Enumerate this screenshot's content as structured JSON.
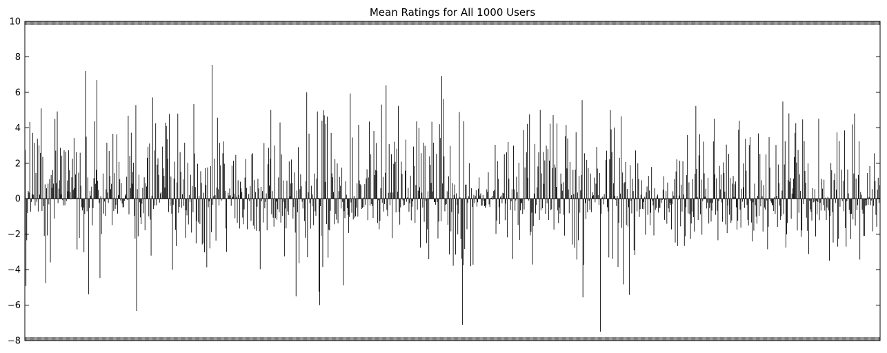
{
  "chart_data": {
    "type": "bar",
    "title": "Mean Ratings for All 1000 Users",
    "xlabel": "",
    "ylabel": "",
    "ylim": [
      -8,
      10
    ],
    "yticks": [
      -8,
      -6,
      -4,
      -2,
      0,
      2,
      4,
      6,
      8,
      10
    ],
    "x_tick_labels_shown": false,
    "grid": false,
    "legend": "none",
    "bar_color": "#000000",
    "categories_count": 1000,
    "values": [
      2.75,
      -4.92,
      -2.34,
      -0.8,
      0.44,
      0.35,
      4.33,
      -0.74,
      -0.18,
      0.26,
      3.71,
      0.22,
      3.15,
      -0.39,
      1.45,
      -0.18,
      3.38,
      -0.72,
      3.01,
      0.23,
      2.58,
      5.09,
      -0.69,
      2.36,
      -0.42,
      -2.1,
      0.81,
      -4.76,
      0.59,
      -2.07,
      0.85,
      -0.32,
      1.1,
      -3.59,
      1.33,
      0.62,
      1.61,
      0.85,
      -1.12,
      4.5,
      2.71,
      0.88,
      4.92,
      -0.25,
      0.57,
      1.04,
      2.87,
      0.25,
      2.43,
      -0.08,
      -0.38,
      2.73,
      -0.37,
      2.65,
      -0.13,
      1.03,
      0.42,
      2.73,
      1.6,
      0.38,
      -0.04,
      1.21,
      2.25,
      0.51,
      3.42,
      0.6,
      1.37,
      2.63,
      -2.86,
      0.06,
      1.47,
      -2.21,
      2.59,
      0.73,
      -0.48,
      -0.66,
      -0.5,
      -3.02,
      -0.86,
      7.2,
      3.5,
      -0.71,
      1.2,
      -5.39,
      -0.52,
      0.43,
      0.17,
      0.68,
      -1.5,
      -0.53,
      1.16,
      4.36,
      0.84,
      1.63,
      6.7,
      1.02,
      0.49,
      -0.24,
      -4.47,
      0.14,
      -2.0,
      -0.01,
      1.42,
      -0.84,
      -0.16,
      -0.97,
      0.53,
      3.16,
      0.35,
      -0.24,
      2.69,
      1.28,
      0.54,
      0.84,
      -1.49,
      3.66,
      -0.7,
      1.44,
      -0.57,
      -0.35,
      3.63,
      -0.84,
      0.2,
      2.08,
      1.1,
      -0.1,
      0.89,
      -0.27,
      -0.48,
      -0.48,
      -0.12,
      0.18,
      0.26,
      1.24,
      -0.07,
      4.68,
      -0.88,
      2.42,
      0.59,
      3.72,
      0.85,
      1.52,
      2.03,
      -0.97,
      -2.25,
      5.28,
      -6.33,
      0.54,
      -2.12,
      1.35,
      -0.2,
      -1.05,
      -1.43,
      -0.28,
      0.61,
      -0.82,
      1.21,
      -1.78,
      0.88,
      0.69,
      2.31,
      2.93,
      -0.99,
      3.11,
      -1.18,
      -3.21,
      0.17,
      5.71,
      -0.58,
      2.72,
      -0.39,
      4.25,
      -0.37,
      1.92,
      2.28,
      1.34,
      -0.22,
      0.3,
      0.39,
      0.03,
      2.94,
      1.71,
      1.29,
      0.63,
      4.29,
      4.1,
      3.35,
      2.25,
      -0.75,
      4.78,
      -0.4,
      1.25,
      -0.84,
      -4.0,
      -0.34,
      1.14,
      2.09,
      -1.76,
      -2.67,
      0.92,
      4.8,
      -0.8,
      -0.46,
      2.63,
      1.52,
      -0.51,
      0.26,
      1.09,
      -0.41,
      3.16,
      -2.2,
      -0.66,
      -0.94,
      2.02,
      -1.45,
      0.21,
      -0.2,
      1.35,
      -1.91,
      0.72,
      -0.76,
      5.34,
      2.55,
      0.66,
      -2.52,
      -1.25,
      1.97,
      -1.33,
      0.17,
      -1.42,
      1.55,
      0.89,
      -2.58,
      -2.52,
      0.34,
      -3.02,
      1.73,
      0.78,
      -3.87,
      1.76,
      -0.48,
      -0.15,
      -2.8,
      1.84,
      -1.88,
      7.55,
      -0.35,
      0.14,
      2.25,
      0.2,
      -2.36,
      0.63,
      4.57,
      0.54,
      -0.38,
      3.15,
      1.88,
      -0.11,
      -0.04,
      2.56,
      3.23,
      1.97,
      0.44,
      -1.68,
      -2.99,
      0.01,
      0.34,
      0.18,
      0.58,
      0.19,
      -0.4,
      1.87,
      0.1,
      2.14,
      0.29,
      -1.1,
      2.47,
      0.11,
      -1.36,
      1.04,
      0.21,
      -1.68,
      0.96,
      0.58,
      0.38,
      -1.06,
      -1.44,
      -0.6,
      1.19,
      2.24,
      0.61,
      -1.72,
      -0.05,
      0.27,
      -0.13,
      0.71,
      -1.25,
      2.5,
      2.57,
      -1.52,
      1.05,
      -1.71,
      0.38,
      -1.81,
      -0.45,
      1.12,
      0.58,
      -1.83,
      -3.97,
      0.67,
      -0.15,
      0.43,
      -1.34,
      3.14,
      -0.54,
      -0.18,
      0.3,
      -1.78,
      1.94,
      2.87,
      0.74,
      2.26,
      5.01,
      -0.87,
      0.43,
      -1.07,
      -1.57,
      3.0,
      -1.09,
      -0.16,
      -1.18,
      -0.59,
      1.2,
      -0.76,
      4.3,
      -1.35,
      2.5,
      -0.96,
      1.03,
      -0.18,
      -3.25,
      -0.55,
      -1.67,
      1.02,
      -0.71,
      -0.92,
      2.1,
      0.14,
      0.86,
      2.21,
      0.89,
      -1.12,
      -0.47,
      1.48,
      -1.91,
      -5.5,
      0.46,
      -0.77,
      2.91,
      -3.64,
      0.54,
      1.38,
      0.7,
      -0.17,
      -0.55,
      -0.05,
      -1.26,
      -2.2,
      0.98,
      6.0,
      -3.3,
      0.36,
      3.67,
      -0.25,
      -1.69,
      0.73,
      -0.43,
      0.24,
      -1.49,
      1.42,
      -0.71,
      -0.96,
      1.14,
      4.92,
      0.05,
      -5.24,
      -6.0,
      -0.42,
      -2.1,
      4.4,
      -3.85,
      4.99,
      4.7,
      0.95,
      4.21,
      -1.43,
      4.63,
      -3.32,
      -1.75,
      -1.79,
      -0.68,
      3.71,
      1.43,
      1.21,
      0.38,
      -1.44,
      2.23,
      -0.86,
      -1.18,
      1.99,
      -1.39,
      0.43,
      1.23,
      0.73,
      -0.55,
      1.75,
      -0.18,
      -4.88,
      -0.7,
      -1.09,
      0.98,
      0.22,
      -0.53,
      -0.93,
      -1.93,
      -1.03,
      5.93,
      -0.21,
      -0.79,
      3.45,
      -1.17,
      0.16,
      -1.07,
      -0.99,
      -0.51,
      0.87,
      -1.01,
      4.17,
      1.03,
      0.82,
      0.76,
      -0.58,
      -0.52,
      0.07,
      -0.47,
      0.82,
      -0.34,
      1.15,
      1.66,
      -1.21,
      1.2,
      4.35,
      -0.38,
      2.51,
      -0.3,
      -0.41,
      -1.08,
      3.82,
      1.33,
      1.62,
      3.14,
      1.58,
      -1.37,
      -0.08,
      -1.72,
      -1.25,
      0.59,
      5.31,
      -0.23,
      1.23,
      -0.72,
      -0.3,
      1.46,
      6.4,
      -0.63,
      -0.98,
      0.33,
      3.08,
      -0.36,
      0.35,
      2.51,
      -2.22,
      0.35,
      1.97,
      3.21,
      2.08,
      -0.77,
      2.82,
      0.4,
      5.23,
      -0.75,
      -1.46,
      -0.49,
      2.09,
      1.4,
      -0.09,
      -0.39,
      -0.34,
      1.58,
      3.33,
      -0.17,
      0.07,
      0.61,
      -0.73,
      -0.26,
      1.3,
      -1.22,
      -0.45,
      -0.14,
      2.94,
      1.84,
      -1.37,
      0.78,
      4.36,
      -0.62,
      0.45,
      3.99,
      0.65,
      -2.76,
      2.57,
      0.34,
      -0.5,
      3.16,
      -1.3,
      2.98,
      -0.13,
      -2.5,
      -1.73,
      0.42,
      -3.41,
      2.39,
      1.91,
      0.89,
      4.34,
      0.41,
      3.16,
      -0.19,
      -0.19,
      -0.34,
      2.53,
      -0.18,
      -2.24,
      -1.29,
      4.2,
      3.42,
      -1.27,
      6.92,
      0.86,
      5.62,
      2.39,
      -0.71,
      -0.34,
      -0.3,
      0.42,
      -1.47,
      1.27,
      -3.14,
      2.98,
      -1.84,
      -0.75,
      0.88,
      -3.78,
      0.21,
      0.8,
      -3.15,
      0.3,
      -0.36,
      -2.01,
      -0.84,
      4.89,
      0.07,
      -2.27,
      -3.39,
      -7.11,
      -3.75,
      4.37,
      -2.83,
      0.79,
      0.8,
      -1.72,
      -0.24,
      0.14,
      2.01,
      0.06,
      -3.81,
      0.59,
      -0.46,
      -3.72,
      0.22,
      -0.25,
      0.15,
      0.48,
      -0.44,
      -0.2,
      0.57,
      1.2,
      0.18,
      0.3,
      -0.4,
      -0.38,
      0.21,
      -0.12,
      -0.42,
      -0.52,
      -0.39,
      0.53,
      0.39,
      1.49,
      -0.32,
      -0.47,
      0.04,
      0.06,
      0.17,
      -0.05,
      0.43,
      0.49,
      3.04,
      -1.98,
      -1.23,
      2.12,
      1.12,
      -0.48,
      -1.43,
      0.11,
      0.18,
      -0.26,
      0.33,
      0.31,
      2.51,
      -1.21,
      -0.28,
      2.62,
      -2.18,
      3.2,
      1.13,
      0.04,
      -0.64,
      -0.15,
      0.54,
      -3.4,
      2.99,
      0.53,
      -0.67,
      -0.1,
      1.24,
      0.37,
      -1.48,
      2.03,
      -2.33,
      -0.66,
      -0.26,
      -0.25,
      -0.86,
      3.87,
      -0.61,
      1.76,
      -0.02,
      2.62,
      4.22,
      1.18,
      -0.1,
      4.76,
      -2.07,
      -1.86,
      -0.79,
      -3.71,
      -1.55,
      0.29,
      3.09,
      -0.83,
      -0.35,
      0.64,
      1.82,
      2.62,
      -1.2,
      5.01,
      -0.66,
      1.43,
      -0.54,
      2.64,
      0.84,
      2.16,
      -0.85,
      2.99,
      -0.26,
      2.8,
      -1.2,
      2.15,
      4.23,
      -0.65,
      -0.59,
      1.73,
      4.71,
      -1.74,
      1.93,
      1.76,
      0.67,
      4.24,
      -0.66,
      -1.38,
      -0.5,
      -0.84,
      1.42,
      0.84,
      0.45,
      0.93,
      -0.91,
      -2.08,
      3.53,
      4.16,
      1.71,
      3.4,
      0.52,
      -0.82,
      2.07,
      0.02,
      0.2,
      -2.58,
      1.63,
      0.27,
      -2.77,
      1.64,
      3.75,
      -3.43,
      0.35,
      -2.34,
      1.28,
      -0.79,
      0.47,
      1.34,
      5.56,
      -5.56,
      -3.73,
      2.56,
      -0.25,
      -1.15,
      2.19,
      -0.76,
      1.73,
      -0.12,
      -0.62,
      1.42,
      -0.76,
      0.16,
      0.36,
      0.2,
      1.19,
      -0.2,
      0.85,
      2.92,
      1.7,
      0.2,
      -0.34,
      1.45,
      -7.5,
      -0.85,
      0.06,
      0.12,
      -0.32,
      0.26,
      0.01,
      2.18,
      2.71,
      -0.48,
      -0.72,
      -3.31,
      2.22,
      5.0,
      3.91,
      2.64,
      -3.39,
      0.87,
      4.01,
      0.16,
      -0.07,
      -0.41,
      0.16,
      -3.84,
      -1.36,
      2.31,
      0.29,
      4.65,
      -1.64,
      1.48,
      -4.83,
      0.88,
      0.94,
      2.07,
      -1.48,
      0.55,
      -1.57,
      -0.48,
      -5.42,
      1.89,
      -0.13,
      -0.83,
      1.13,
      0.43,
      -2.91,
      -3.18,
      2.72,
      0.06,
      -0.71,
      2.0,
      1.11,
      -1.03,
      -0.59,
      0.22,
      1.04,
      -0.57,
      -0.19,
      -0.59,
      0.11,
      -2.03,
      0.36,
      0.69,
      -0.91,
      1.29,
      0.46,
      -1.5,
      -0.79,
      1.79,
      -0.11,
      -0.38,
      -2.07,
      0.59,
      -0.63,
      -0.52,
      0.13,
      0.23,
      -0.78,
      -0.52,
      -0.51,
      -0.04,
      -0.23,
      -0.07,
      0.51,
      1.27,
      -1.19,
      -0.06,
      0.43,
      -1.41,
      0.91,
      -0.54,
      -0.77,
      -0.23,
      -0.35,
      -1.73,
      -0.3,
      0.42,
      0.17,
      1.1,
      -2.47,
      1.54,
      2.22,
      -2.67,
      -0.05,
      0.18,
      2.14,
      -1.56,
      0.79,
      -0.72,
      2.11,
      0.24,
      -2.66,
      -2.12,
      -0.48,
      1.33,
      3.59,
      -0.83,
      0.92,
      -0.87,
      -2.27,
      -1.4,
      -0.73,
      1.1,
      -1.04,
      -1.85,
      1.41,
      5.23,
      1.68,
      0.09,
      -1.2,
      2.44,
      3.64,
      -0.88,
      1.08,
      -2.03,
      -0.13,
      3.22,
      1.43,
      0.12,
      0.56,
      -0.55,
      -0.22,
      1.18,
      -1.4,
      -0.52,
      -0.24,
      -1.29,
      -0.67,
      -0.23,
      3.23,
      4.51,
      1.38,
      -0.91,
      1.15,
      -0.68,
      -2.34,
      -0.13,
      1.85,
      0.53,
      1.36,
      -0.21,
      -1.3,
      2.05,
      1.45,
      0.4,
      -1.45,
      3.05,
      -1.94,
      -0.39,
      2.53,
      -0.9,
      1.17,
      -1.37,
      -1.23,
      0.85,
      1.28,
      0.1,
      0.81,
      0.97,
      -0.49,
      -1.74,
      -1.24,
      3.89,
      4.4,
      -0.62,
      -1.63,
      0.56,
      -0.17,
      1.99,
      0.65,
      -0.52,
      3.38,
      1.58,
      -0.34,
      -1.19,
      -1.51,
      3.03,
      3.47,
      -0.12,
      -1.34,
      -2.41,
      -0.2,
      -1.8,
      0.85,
      -0.37,
      -1.01,
      -1.41,
      0.17,
      3.68,
      -0.97,
      2.53,
      -0.43,
      1.04,
      0.14,
      -1.85,
      0.77,
      -0.5,
      -0.61,
      2.5,
      -0.1,
      -2.85,
      -1.58,
      3.47,
      1.75,
      -0.14,
      -0.22,
      -0.37,
      -0.36,
      -0.69,
      0.09,
      -0.86,
      3.03,
      0.16,
      -1.59,
      1.93,
      0.88,
      -0.39,
      -1.19,
      -0.98,
      0.46,
      5.48,
      -0.87,
      1.93,
      3.24,
      -2.76,
      -2.01,
      -1.38,
      1.05,
      4.81,
      0.96,
      1.17,
      -1.13,
      0.29,
      0.58,
      1.13,
      2.35,
      3.71,
      4.26,
      2.04,
      -1.79,
      2.75,
      -0.79,
      1.38,
      0.44,
      -2.15,
      -1.79,
      4.47,
      -0.3,
      3.25,
      1.57,
      0.9,
      -1.07,
      -1.81,
      1.99,
      -3.12,
      -0.11,
      -0.59,
      -0.74,
      -1.23,
      0.59,
      -0.2,
      -0.17,
      0.54,
      -2.13,
      -0.12,
      -0.89,
      -0.18,
      4.51,
      -1.21,
      -0.23,
      -0.67,
      1.12,
      0.57,
      -0.36,
      1.07,
      -0.67,
      0.06,
      -1.2,
      -0.5,
      0.11,
      -0.66,
      -3.49,
      -0.98,
      2.01,
      1.61,
      -0.76,
      -2.47,
      1.05,
      1.42,
      -0.24,
      0.51,
      3.74,
      -2.7,
      -2.26,
      3.25,
      -0.45,
      -0.02,
      1.64,
      -0.14,
      1.01,
      -0.7,
      3.85,
      -1.66,
      -2.7,
      -0.14,
      1.65,
      0.3,
      -0.63,
      -0.86,
      -2.28,
      -0.85,
      4.19,
      -1.17,
      1.42,
      4.8,
      -1.52,
      1.13,
      -0.65,
      -0.36,
      1.34,
      3.24,
      -3.43,
      0.38,
      0.22,
      -0.62,
      -0.84,
      -2.09,
      -2.09,
      -0.4,
      -0.07,
      -0.38,
      1.45,
      -0.34,
      0.09,
      1.84,
      -0.37,
      -0.1,
      0.54,
      -1.84,
      -0.4,
      2.56,
      1.0,
      -0.91,
      -1.58,
      0.51,
      1.18,
      -0.24,
      0.76
    ]
  }
}
